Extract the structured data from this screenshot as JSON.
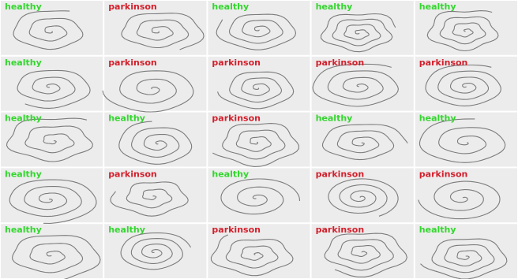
{
  "grid": {
    "rows": [
      [
        "healthy",
        "parkinson",
        "healthy",
        "healthy",
        "healthy"
      ],
      [
        "healthy",
        "parkinson",
        "parkinson",
        "parkinson",
        "parkinson"
      ],
      [
        "healthy",
        "healthy",
        "parkinson",
        "healthy",
        "healthy"
      ],
      [
        "healthy",
        "parkinson",
        "healthy",
        "parkinson",
        "parkinson"
      ],
      [
        "healthy",
        "healthy",
        "parkinson",
        "parkinson",
        "healthy"
      ]
    ],
    "label_colors": {
      "healthy": "#33d62e",
      "parkinson": "#d21f2b"
    }
  }
}
